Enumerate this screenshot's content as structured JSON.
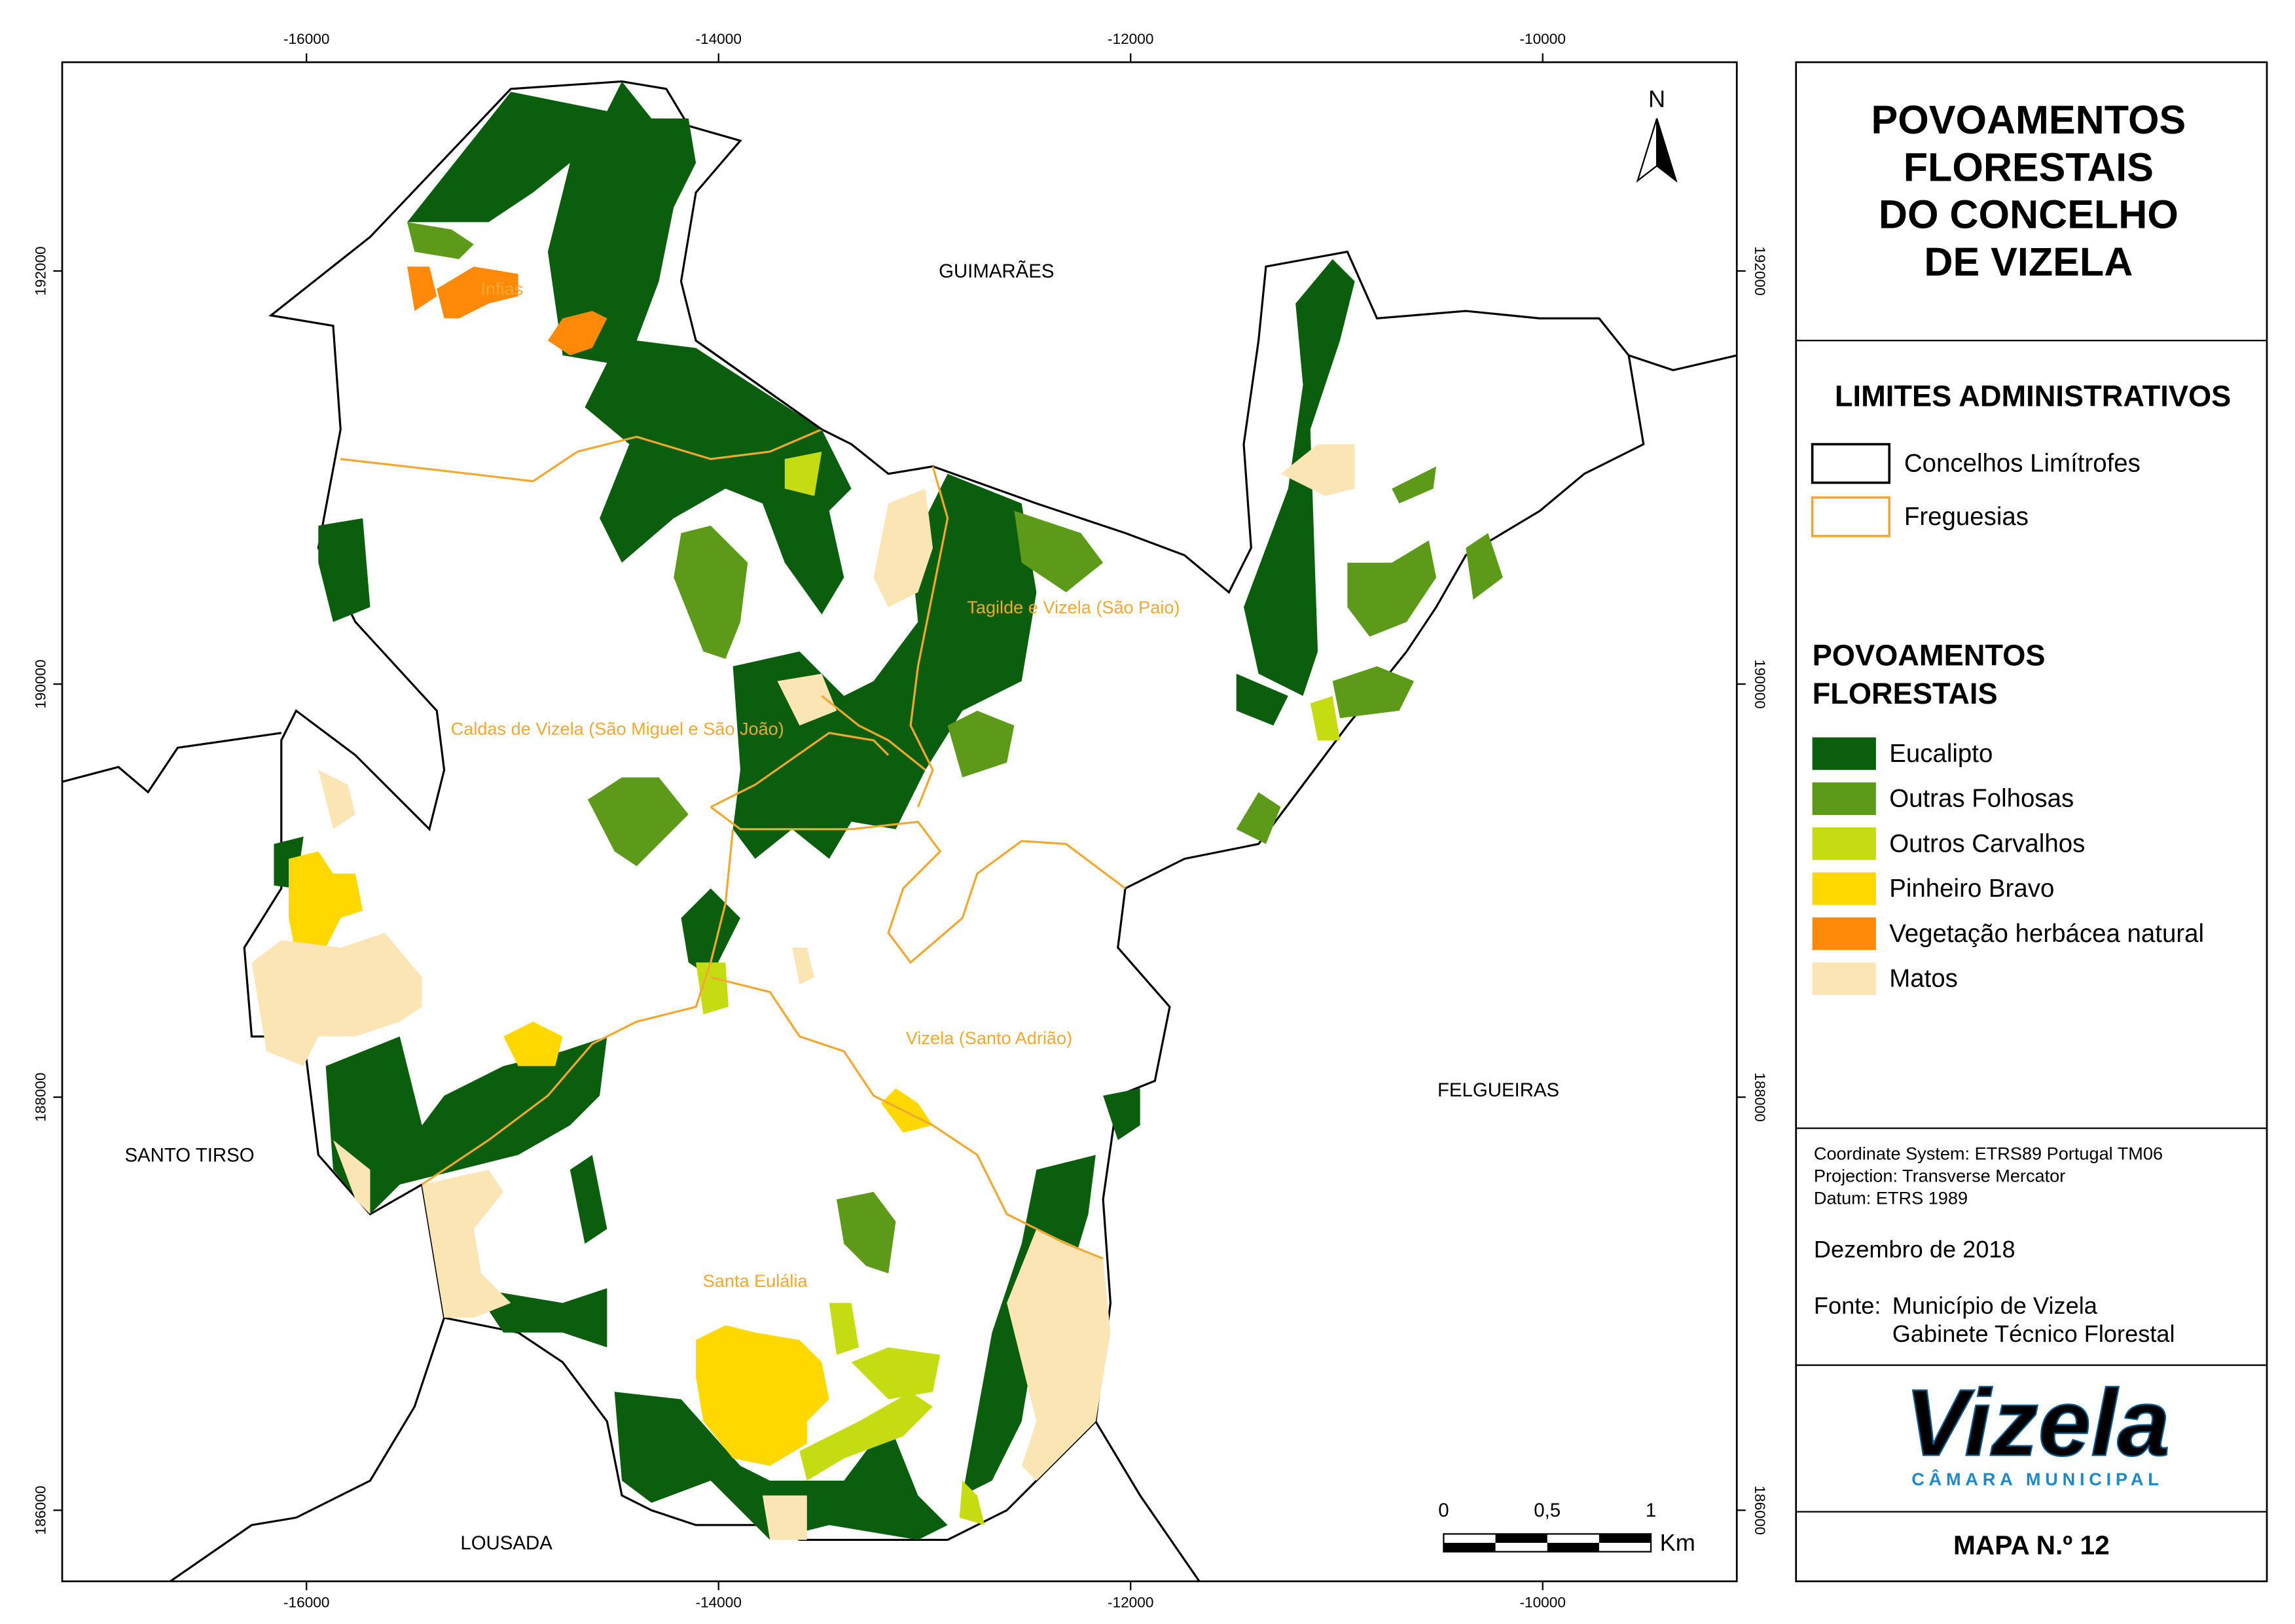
{
  "map": {
    "x_ticks": [
      "-16000",
      "-14000",
      "-12000",
      "-10000"
    ],
    "y_ticks": [
      "192000",
      "190000",
      "188000",
      "186000"
    ],
    "neighbours": [
      "GUIMARÃES",
      "SANTO TIRSO",
      "LOUSADA",
      "FELGUEIRAS"
    ],
    "parishes": [
      "Infias",
      "Tagilde e Vizela (São Paio)",
      "Caldas de Vizela (São Miguel e São João)",
      "Vizela (Santo Adrião)",
      "Santa Eulália"
    ],
    "north": "N",
    "scale": {
      "labels": [
        "0",
        "0,5",
        "1"
      ],
      "unit": "Km"
    }
  },
  "panel": {
    "title": [
      "POVOAMENTOS",
      "FLORESTAIS",
      "DO CONCELHO",
      "DE VIZELA"
    ],
    "limits": {
      "title": "LIMITES ADMINISTRATIVOS",
      "items": [
        {
          "label": "Concelhos Limítrofes",
          "color": "#000000"
        },
        {
          "label": "Freguesias",
          "color": "#f0a830"
        }
      ]
    },
    "forest": {
      "title": [
        "POVOAMENTOS",
        "FLORESTAIS"
      ],
      "items": [
        {
          "label": "Eucalipto",
          "color": "#0b5e0d"
        },
        {
          "label": "Outras Folhosas",
          "color": "#5e9a1a"
        },
        {
          "label": "Outros Carvalhos",
          "color": "#c6dc12"
        },
        {
          "label": "Pinheiro Bravo",
          "color": "#ffd800"
        },
        {
          "label": "Vegetação herbácea natural",
          "color": "#ff8a0a"
        },
        {
          "label": "Matos",
          "color": "#fbe5b5"
        }
      ]
    },
    "info": [
      "Coordinate System: ETRS89 Portugal TM06",
      "Projection: Transverse Mercator",
      "Datum: ETRS 1989"
    ],
    "date": "Dezembro de 2018",
    "source": {
      "label": "Fonte:",
      "lines": [
        "Município de Vizela",
        "Gabinete Técnico Florestal"
      ]
    },
    "logo": {
      "name": "Vizela",
      "subtitle": "CÂMARA MUNICIPAL"
    },
    "map_number": "MAPA N.º 12"
  }
}
